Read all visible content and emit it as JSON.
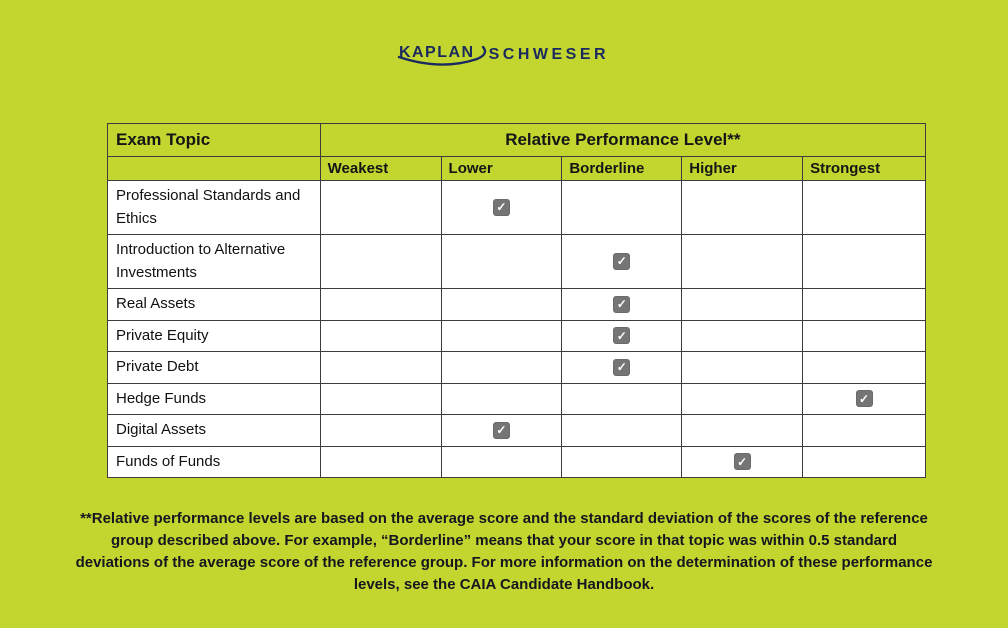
{
  "page": {
    "background_color": "#c3d630",
    "brand_navy": "#1b2a5e",
    "checkbox_gray": "#757575"
  },
  "logo": {
    "kaplan": "KAPLAN",
    "schweser": "SCHWESER"
  },
  "table": {
    "header": {
      "exam_topic": "Exam Topic",
      "performance_level": "Relative Performance Level**"
    },
    "levels": [
      "Weakest",
      "Lower",
      "Borderline",
      "Higher",
      "Strongest"
    ],
    "rows": [
      {
        "topic": "Professional Standards and Ethics",
        "level": "Lower"
      },
      {
        "topic": "Introduction to Alternative Investments",
        "level": "Borderline"
      },
      {
        "topic": "Real Assets",
        "level": "Borderline"
      },
      {
        "topic": "Private Equity",
        "level": "Borderline"
      },
      {
        "topic": "Private Debt",
        "level": "Borderline"
      },
      {
        "topic": "Hedge Funds",
        "level": "Strongest"
      },
      {
        "topic": "Digital Assets",
        "level": "Lower"
      },
      {
        "topic": "Funds of Funds",
        "level": "Higher"
      }
    ]
  },
  "footnote": {
    "text": "**Relative performance levels are based on the average score and the standard deviation of the scores of the reference group described above. For example, “Borderline” means that your score in that topic was within 0.5 standard deviations of the average score of the reference group. For more information on the determination of these performance levels, see the CAIA Candidate Handbook."
  }
}
